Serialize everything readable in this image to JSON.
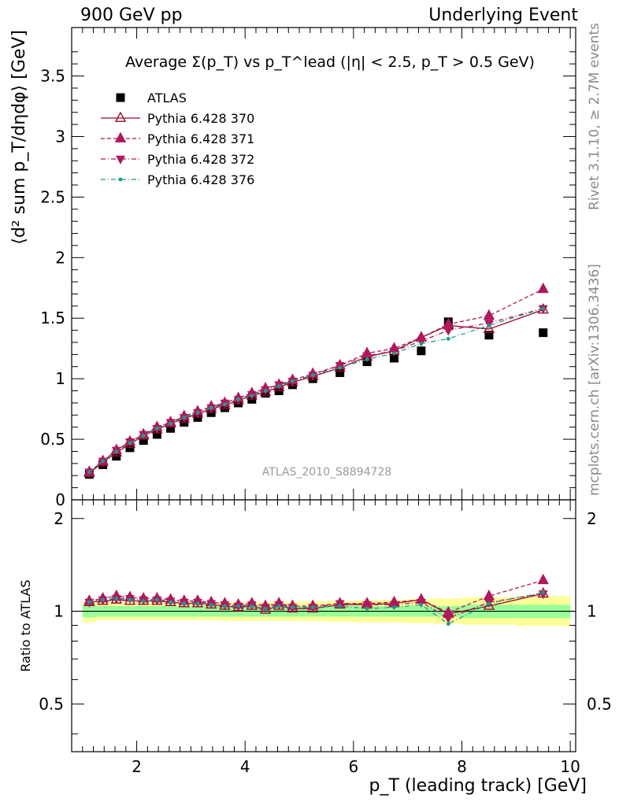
{
  "header": {
    "left": "900 GeV pp",
    "right": "Underlying Event"
  },
  "side_labels": {
    "rivet": "Rivet 3.1.10, ≥ 2.7M events",
    "mcplots": "mcplots.cern.ch [arXiv:1306.3436]"
  },
  "watermark": "ATLAS_2010_S8894728",
  "chart_data": [
    {
      "type": "scatter",
      "panel": "main",
      "title": "Average Σ(p_T) vs p_T^lead (|η| < 2.5, p_T > 0.5 GeV)",
      "xlabel": "p_T (leading track) [GeV]",
      "ylabel": "⟨d² sum p_T/dηdφ⟩ [GeV]",
      "xlim": [
        0.8,
        10.1
      ],
      "ylim": [
        0,
        3.9
      ],
      "xticks": [
        "2",
        "4",
        "6",
        "8",
        "10"
      ],
      "yticks": [
        "0",
        "0.5",
        "1",
        "1.5",
        "2",
        "2.5",
        "3",
        "3.5"
      ],
      "x": [
        1.125,
        1.375,
        1.625,
        1.875,
        2.125,
        2.375,
        2.625,
        2.875,
        3.125,
        3.375,
        3.625,
        3.875,
        4.125,
        4.375,
        4.625,
        4.875,
        5.25,
        5.75,
        6.25,
        6.75,
        7.25,
        7.75,
        8.5,
        9.5
      ],
      "series": [
        {
          "name": "ATLAS",
          "color": "#000000",
          "marker": "square",
          "line": "none",
          "values": [
            0.21,
            0.29,
            0.36,
            0.43,
            0.49,
            0.54,
            0.59,
            0.64,
            0.68,
            0.72,
            0.76,
            0.8,
            0.83,
            0.88,
            0.9,
            0.95,
            1.0,
            1.05,
            1.14,
            1.17,
            1.23,
            1.47,
            1.36,
            1.38
          ]
        },
        {
          "name": "Pythia 6.428 370",
          "color": "#9b0a28",
          "marker": "triangle-up-open",
          "line": "solid",
          "values": [
            0.22,
            0.31,
            0.39,
            0.46,
            0.53,
            0.58,
            0.63,
            0.67,
            0.71,
            0.75,
            0.78,
            0.82,
            0.86,
            0.89,
            0.93,
            0.97,
            1.02,
            1.09,
            1.18,
            1.23,
            1.34,
            1.44,
            1.41,
            1.57
          ]
        },
        {
          "name": "Pythia 6.428 371",
          "color": "#b0185c",
          "marker": "triangle-up",
          "line": "dashed",
          "values": [
            0.23,
            0.32,
            0.41,
            0.48,
            0.54,
            0.6,
            0.64,
            0.69,
            0.73,
            0.77,
            0.8,
            0.84,
            0.88,
            0.92,
            0.95,
            0.99,
            1.04,
            1.11,
            1.21,
            1.25,
            1.34,
            1.45,
            1.52,
            1.74
          ]
        },
        {
          "name": "Pythia 6.428 372",
          "color": "#b0185c",
          "marker": "triangle-down",
          "line": "dashdot",
          "values": [
            0.23,
            0.32,
            0.41,
            0.48,
            0.54,
            0.59,
            0.64,
            0.68,
            0.72,
            0.76,
            0.8,
            0.83,
            0.87,
            0.91,
            0.95,
            0.98,
            1.03,
            1.11,
            1.19,
            1.23,
            1.31,
            1.4,
            1.46,
            1.58
          ]
        },
        {
          "name": "Pythia 6.428 376",
          "color": "#1f9a8a",
          "marker": "dot",
          "line": "dashdot",
          "values": [
            0.23,
            0.32,
            0.4,
            0.47,
            0.53,
            0.59,
            0.63,
            0.68,
            0.72,
            0.76,
            0.79,
            0.83,
            0.86,
            0.9,
            0.94,
            0.98,
            1.03,
            1.09,
            1.16,
            1.21,
            1.29,
            1.33,
            1.44,
            1.58
          ]
        }
      ]
    },
    {
      "type": "line",
      "panel": "ratio",
      "ylabel": "Ratio to ATLAS",
      "xlim": [
        0.8,
        10.1
      ],
      "ylim": [
        0.35,
        2.3
      ],
      "yscale": "log",
      "yticks": [
        "0.5",
        "1",
        "2"
      ],
      "x": [
        1.125,
        1.375,
        1.625,
        1.875,
        2.125,
        2.375,
        2.625,
        2.875,
        3.125,
        3.375,
        3.625,
        3.875,
        4.125,
        4.375,
        4.625,
        4.875,
        5.25,
        5.75,
        6.25,
        6.75,
        7.25,
        7.75,
        8.5,
        9.5
      ],
      "bands": {
        "stat_color": "#99ff99",
        "total_color": "#ffff99",
        "bin_edges": [
          1.0,
          1.25,
          1.5,
          1.75,
          2.0,
          2.25,
          2.5,
          2.75,
          3.0,
          3.25,
          3.5,
          3.75,
          4.0,
          4.25,
          4.5,
          4.75,
          5.0,
          5.5,
          6.0,
          6.5,
          7.0,
          7.5,
          8.0,
          9.0,
          10.0
        ],
        "stat_low": [
          0.955,
          0.96,
          0.96,
          0.96,
          0.96,
          0.96,
          0.96,
          0.96,
          0.96,
          0.96,
          0.96,
          0.96,
          0.96,
          0.96,
          0.96,
          0.96,
          0.96,
          0.96,
          0.96,
          0.96,
          0.96,
          0.96,
          0.95,
          0.95
        ],
        "stat_high": [
          1.045,
          1.04,
          1.04,
          1.04,
          1.04,
          1.04,
          1.04,
          1.04,
          1.04,
          1.04,
          1.04,
          1.04,
          1.04,
          1.04,
          1.04,
          1.04,
          1.04,
          1.04,
          1.04,
          1.04,
          1.04,
          1.04,
          1.05,
          1.05
        ],
        "total_low": [
          0.92,
          0.935,
          0.935,
          0.935,
          0.935,
          0.935,
          0.935,
          0.935,
          0.935,
          0.935,
          0.932,
          0.93,
          0.93,
          0.93,
          0.93,
          0.93,
          0.928,
          0.925,
          0.92,
          0.92,
          0.915,
          0.91,
          0.905,
          0.895
        ],
        "total_high": [
          1.08,
          1.07,
          1.07,
          1.07,
          1.07,
          1.07,
          1.07,
          1.07,
          1.07,
          1.07,
          1.07,
          1.07,
          1.07,
          1.07,
          1.072,
          1.075,
          1.075,
          1.08,
          1.085,
          1.09,
          1.095,
          1.1,
          1.11,
          1.12
        ]
      },
      "series": [
        {
          "name": "Pythia 6.428 370",
          "values": [
            1.07,
            1.08,
            1.09,
            1.08,
            1.08,
            1.08,
            1.07,
            1.06,
            1.06,
            1.05,
            1.04,
            1.03,
            1.04,
            1.01,
            1.04,
            1.02,
            1.02,
            1.05,
            1.05,
            1.06,
            1.09,
            0.98,
            1.04,
            1.14
          ]
        },
        {
          "name": "Pythia 6.428 371",
          "values": [
            1.08,
            1.1,
            1.12,
            1.11,
            1.1,
            1.1,
            1.09,
            1.08,
            1.08,
            1.07,
            1.06,
            1.05,
            1.06,
            1.04,
            1.06,
            1.04,
            1.04,
            1.06,
            1.06,
            1.07,
            1.09,
            0.99,
            1.12,
            1.26
          ]
        },
        {
          "name": "Pythia 6.428 372",
          "values": [
            1.07,
            1.09,
            1.1,
            1.1,
            1.09,
            1.09,
            1.08,
            1.07,
            1.07,
            1.06,
            1.05,
            1.04,
            1.05,
            1.03,
            1.05,
            1.03,
            1.03,
            1.06,
            1.05,
            1.05,
            1.07,
            0.95,
            1.07,
            1.14
          ]
        },
        {
          "name": "Pythia 6.428 376",
          "values": [
            1.07,
            1.09,
            1.1,
            1.09,
            1.08,
            1.09,
            1.07,
            1.06,
            1.06,
            1.05,
            1.04,
            1.04,
            1.04,
            1.02,
            1.04,
            1.03,
            1.03,
            1.04,
            1.02,
            1.03,
            1.05,
            0.91,
            1.06,
            1.15
          ]
        }
      ]
    }
  ]
}
